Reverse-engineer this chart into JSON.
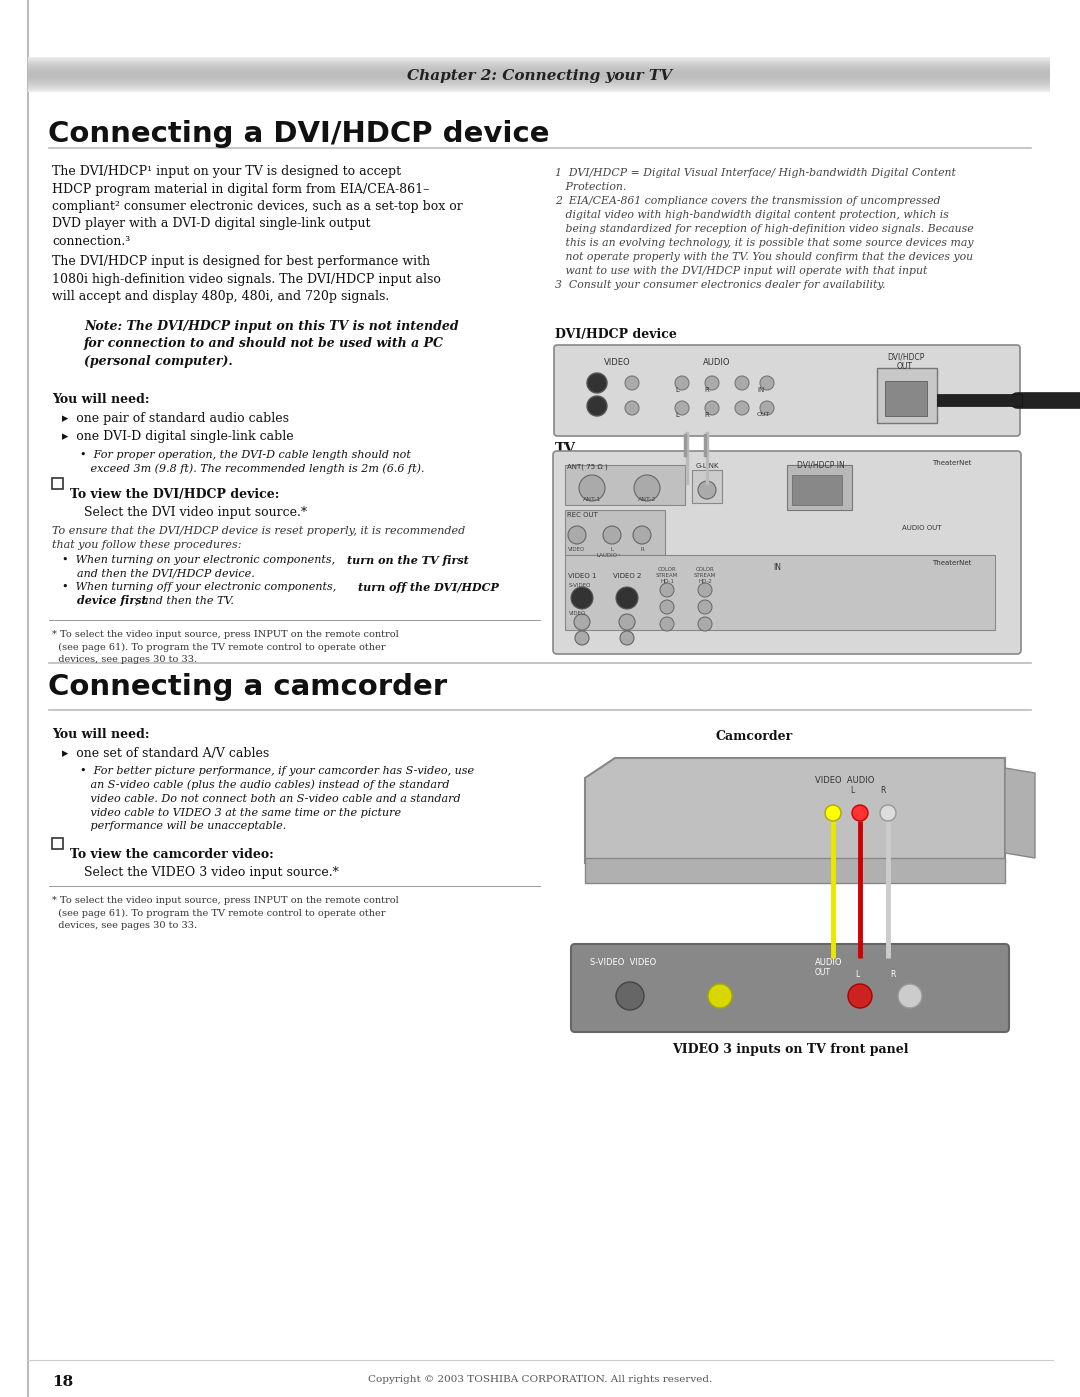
{
  "page_bg": "#ffffff",
  "header_text": "Chapter 2: Connecting your TV",
  "section1_title": "Connecting a DVI/HDCP device",
  "section2_title": "Connecting a camcorder",
  "footer_text": "18",
  "footer_copy": "Copyright © 2003 TOSHIBA CORPORATION. All rights reserved.",
  "body_fs": 9.0,
  "lm": 52,
  "rc": 555,
  "p1": "The DVI/HDCP¹ input on your TV is designed to accept\nHDCP program material in digital form from EIA/CEA-861–\ncompliant² consumer electronic devices, such as a set-top box or\nDVD player with a DVI-D digital single-link output\nconnection.³",
  "p2": "The DVI/HDCP input is designed for best performance with\n1080i high-definition video signals. The DVI/HDCP input also\nwill accept and display 480p, 480i, and 720p signals.",
  "note": "Note: The DVI/HDCP input on this TV is not intended\nfor connection to and should not be used with a PC\n(personal computer).",
  "need1": "You will need:",
  "b1": "▸  one pair of standard audio cables",
  "b2": "▸  one DVI-D digital single-link cable",
  "sub1": "•  For proper operation, the DVI-D cable length should not\n   exceed 3m (9.8 ft). The recommended length is 2m (6.6 ft).",
  "view1_label": "To view the DVI/HDCP device:",
  "view1_body": "Select the DVI video input source.*",
  "adv": "To ensure that the DVI/HDCP device is reset properly, it is recommended\nthat you follow these procedures:",
  "bul1": "•  When turning on your electronic components, ",
  "bul1b": "turn on the TV first",
  "bul1c": ",\n   and then the DVI/HDCP device.",
  "bul2": "•  When turning off your electronic components, ",
  "bul2b": "turn off the DVI/HDCP\n   device first",
  "bul2c": ", and then the TV.",
  "fn1": "* To select the video input source, press INPUT on the remote control\n  (see page 61). To program the TV remote control to operate other\n  devices, see pages 30 to 33.",
  "rfn": "1  DVI/HDCP = Digital Visual Interface/ High-bandwidth Digital Content\n   Protection.\n2  EIA/CEA-861 compliance covers the transmission of uncompressed\n   digital video with high-bandwidth digital content protection, which is\n   being standardized for reception of high-definition video signals. Because\n   this is an evolving technology, it is possible that some source devices may\n   not operate properly with the TV. You should confirm that the devices you\n   want to use with the DVI/HDCP input will operate with that input\n3  Consult your consumer electronics dealer for availability.",
  "dvi_label": "DVI/HDCP device",
  "tv_label": "TV",
  "need2": "You will need:",
  "b3": "▸  one set of standard A/V cables",
  "sub2": "•  For better picture performance, if your camcorder has S-video, use\n   an S-video cable (plus the audio cables) instead of the standard\n   video cable. Do not connect both an S-video cable and a standard\n   video cable to VIDEO 3 at the same time or the picture\n   performance will be unacceptable.",
  "view2_label": "To view the camcorder video:",
  "view2_body": "Select the VIDEO 3 video input source.*",
  "fn2": "* To select the video input source, press INPUT on the remote control\n  (see page 61). To program the TV remote control to operate other\n  devices, see pages 30 to 33.",
  "cam_label": "Camcorder",
  "front_label": "VIDEO 3 inputs on TV front panel"
}
